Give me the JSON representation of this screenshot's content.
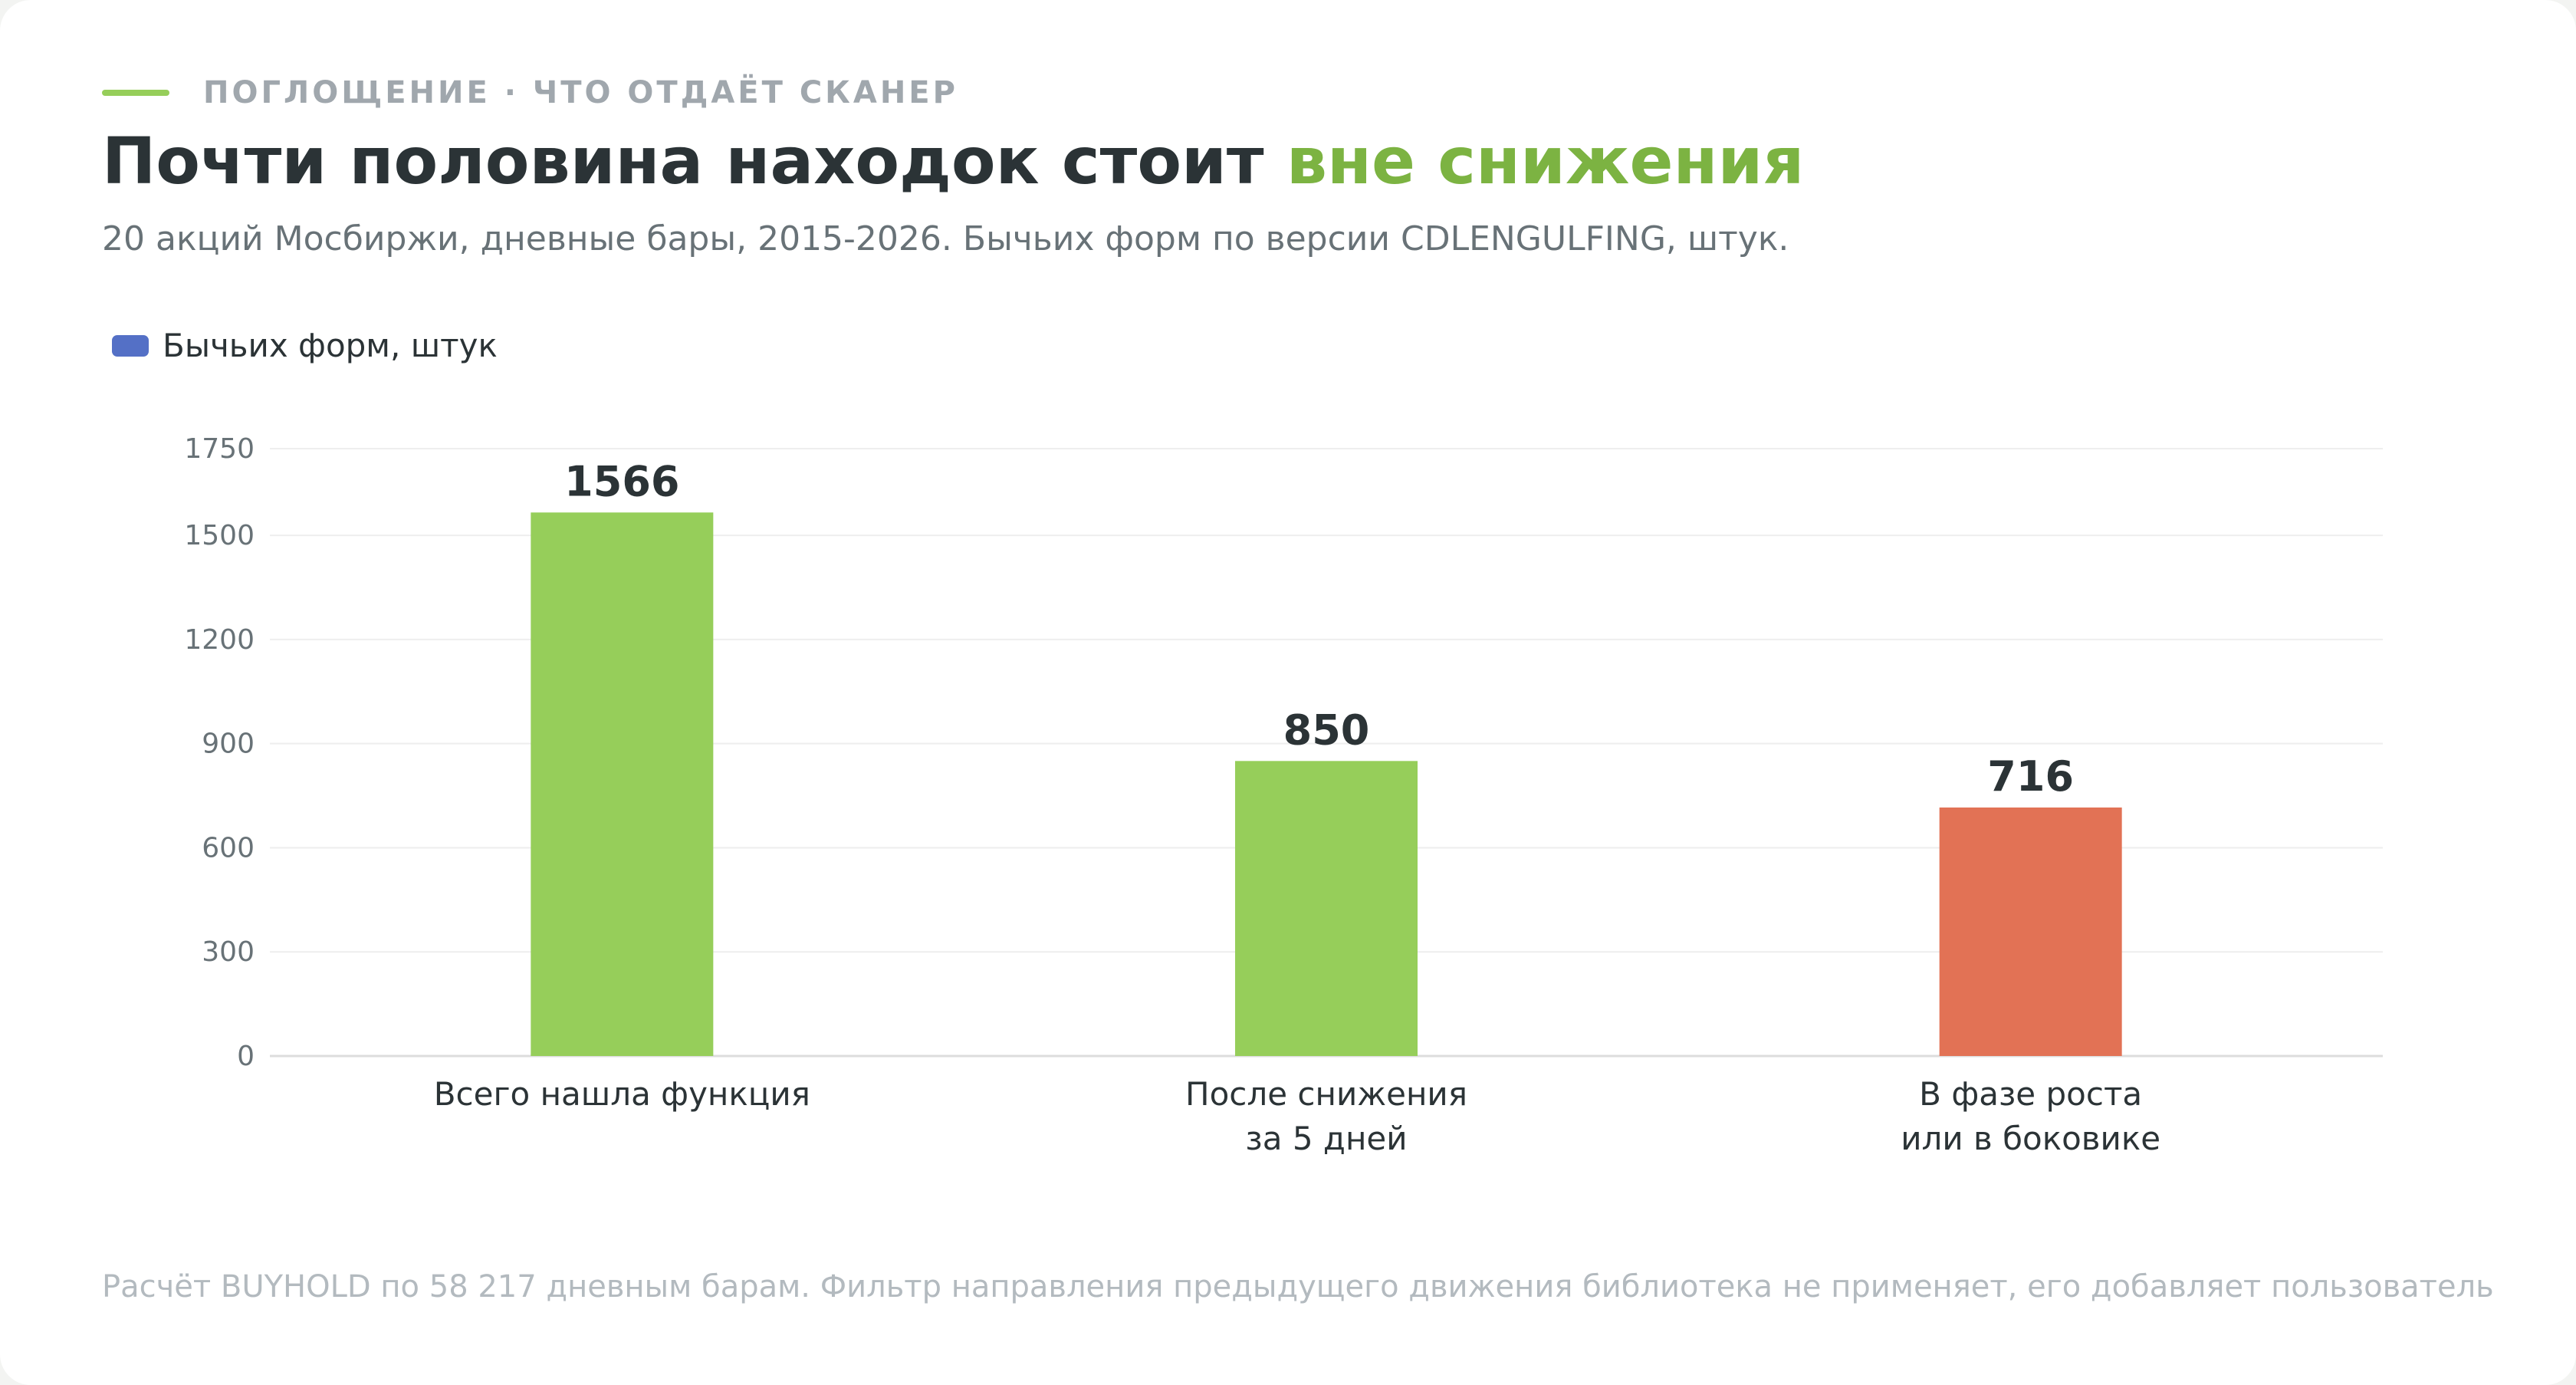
{
  "header": {
    "eyebrow": "ПОГЛОЩЕНИЕ · ЧТО ОТДАЁТ СКАНЕР",
    "title_main": "Почти половина находок стоит ",
    "title_highlight": "вне снижения",
    "subtitle": "20 акций Мосбиржи, дневные бары, 2015-2026. Бычьих форм по версии CDLENGULFING, штук."
  },
  "footnote": "Расчёт BUYHOLD по 58 217 дневным барам. Фильтр направления предыдущего движения библиотека не применяет, его добавляет пользователь",
  "colors": {
    "accent_green": "#96ce5a",
    "title_green": "#7cb342",
    "bar_red": "#e27255",
    "legend_blue": "#5470c6",
    "grid": "#eeeeee",
    "axis": "#dddddd"
  },
  "chart_data": {
    "type": "bar",
    "legend": "Бычьих форм, штук",
    "legend_position": "top-left",
    "grid": true,
    "ylim": [
      0,
      1750
    ],
    "yticks": [
      0,
      300,
      600,
      900,
      1200,
      1500,
      1750
    ],
    "categories": [
      [
        "Всего нашла функция"
      ],
      [
        "После снижения",
        "за 5 дней"
      ],
      [
        "В фазе роста",
        "или в боковике"
      ]
    ],
    "values": [
      1566,
      850,
      716
    ],
    "bar_colors": [
      "#96ce5a",
      "#96ce5a",
      "#e27255"
    ]
  }
}
